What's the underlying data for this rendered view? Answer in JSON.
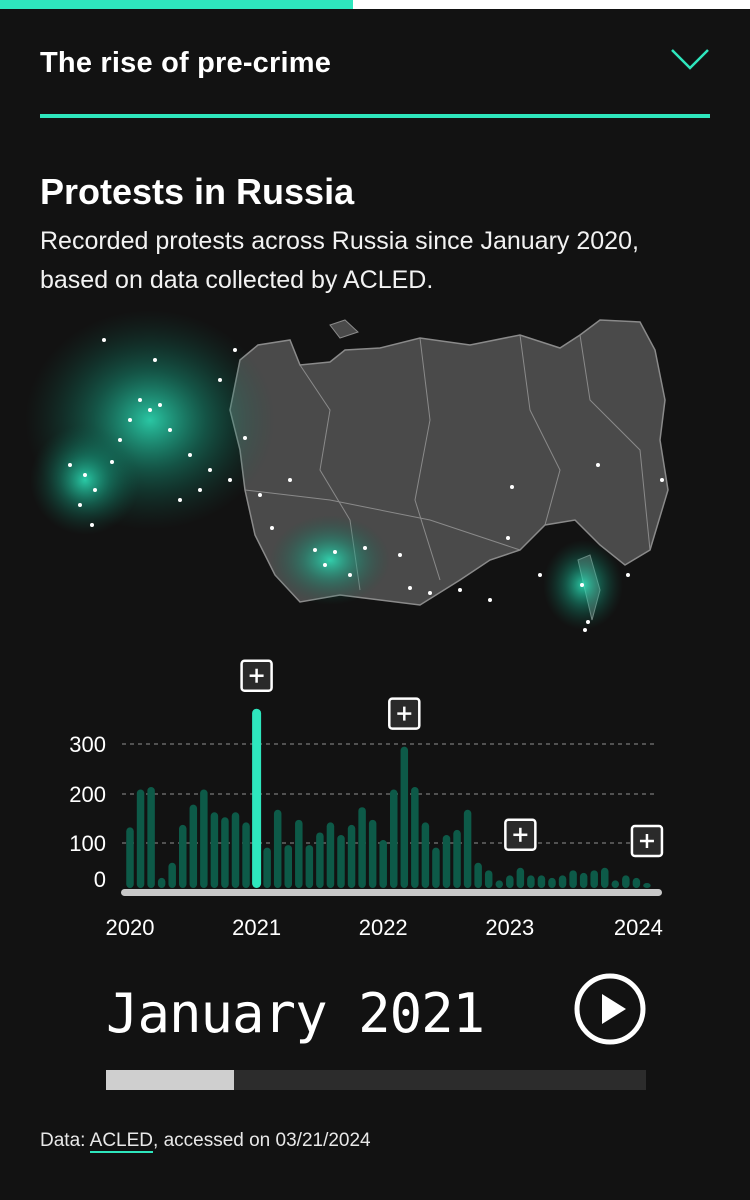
{
  "header": {
    "title": "The rise of pre-crime",
    "progress": 0.47
  },
  "chart_title": "Protests in Russia",
  "chart_subtitle": "Recorded protests across Russia since January 2020, based on data collected by ACLED.",
  "colors": {
    "accent": "#2ee6bd",
    "bar": "#0d5a48",
    "highlight_bar": "#2ee6bd",
    "background": "#121212",
    "map_land": "#4a4a4a"
  },
  "icons": {
    "collapse": "chevron-down-icon",
    "play": "play-icon",
    "annotation": "plus-icon"
  },
  "chart_data": {
    "type": "bar",
    "title": "",
    "xlabel": "",
    "ylabel": "",
    "x_start": "2020-01",
    "x_end": "2024-02",
    "year_ticks": [
      "2020",
      "2021",
      "2022",
      "2023",
      "2024"
    ],
    "y_ticks": [
      0,
      100,
      200,
      300
    ],
    "ylim": [
      0,
      360
    ],
    "grid": true,
    "legend": "none",
    "highlight": "2021-01",
    "months": [
      "2020-01",
      "2020-02",
      "2020-03",
      "2020-04",
      "2020-05",
      "2020-06",
      "2020-07",
      "2020-08",
      "2020-09",
      "2020-10",
      "2020-11",
      "2020-12",
      "2021-01",
      "2021-02",
      "2021-03",
      "2021-04",
      "2021-05",
      "2021-06",
      "2021-07",
      "2021-08",
      "2021-09",
      "2021-10",
      "2021-11",
      "2021-12",
      "2022-01",
      "2022-02",
      "2022-03",
      "2022-04",
      "2022-05",
      "2022-06",
      "2022-07",
      "2022-08",
      "2022-09",
      "2022-10",
      "2022-11",
      "2022-12",
      "2023-01",
      "2023-02",
      "2023-03",
      "2023-04",
      "2023-05",
      "2023-06",
      "2023-07",
      "2023-08",
      "2023-09",
      "2023-10",
      "2023-11",
      "2023-12",
      "2024-01",
      "2024-02"
    ],
    "values": [
      120,
      195,
      200,
      20,
      50,
      125,
      165,
      195,
      150,
      140,
      150,
      130,
      355,
      80,
      155,
      85,
      135,
      85,
      110,
      130,
      105,
      125,
      160,
      135,
      95,
      195,
      280,
      200,
      130,
      80,
      105,
      115,
      155,
      50,
      35,
      15,
      25,
      40,
      25,
      25,
      20,
      25,
      35,
      30,
      35,
      40,
      15,
      25,
      20,
      10
    ],
    "annotations": [
      {
        "month": "2021-01",
        "value": 355
      },
      {
        "month": "2022-03",
        "value": 280
      },
      {
        "month": "2023-02",
        "value": 40
      },
      {
        "month": "2024-02",
        "value": 10
      }
    ]
  },
  "player": {
    "current_label": "January 2021",
    "progress": 0.237
  },
  "footer": {
    "prefix": "Data: ",
    "link_text": "ACLED",
    "suffix": ", accessed on 03/21/2024"
  }
}
